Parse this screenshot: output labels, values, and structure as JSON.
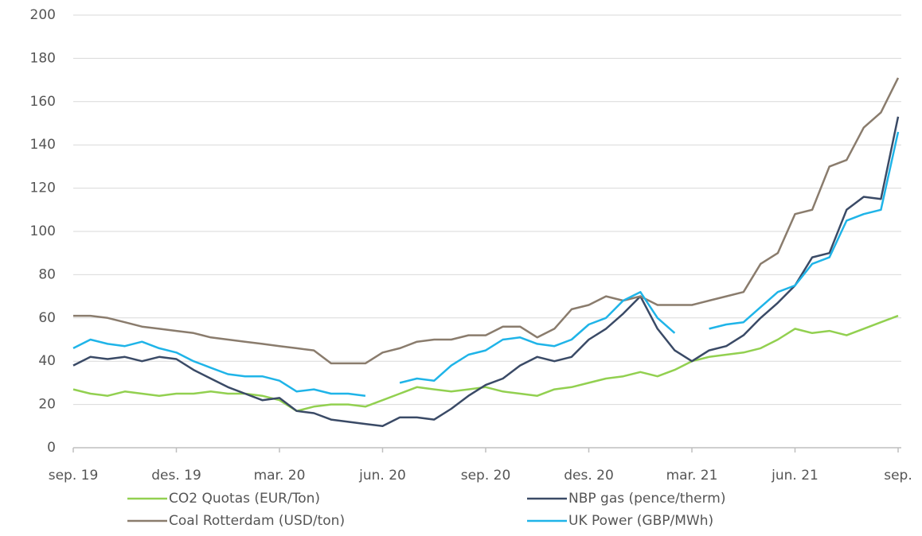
{
  "chart_data": {
    "type": "line",
    "x": [
      0,
      0.5,
      1,
      1.5,
      2,
      2.5,
      3,
      3.5,
      4,
      4.5,
      5,
      5.5,
      6,
      6.5,
      7,
      7.5,
      8,
      8.5,
      9,
      9.5,
      10,
      10.5,
      11,
      11.5,
      12,
      12.5,
      13,
      13.5,
      14,
      14.5,
      15,
      15.5,
      16,
      16.5,
      17,
      17.5,
      18,
      18.5,
      19,
      19.5,
      20,
      20.5,
      21,
      21.5,
      22,
      22.5,
      23,
      23.5,
      24
    ],
    "xlim": [
      0,
      24
    ],
    "xticks": [
      {
        "value": 0,
        "label": "sep. 19"
      },
      {
        "value": 3,
        "label": "des. 19"
      },
      {
        "value": 6,
        "label": "mar. 20"
      },
      {
        "value": 9,
        "label": "jun. 20"
      },
      {
        "value": 12,
        "label": "sep. 20"
      },
      {
        "value": 15,
        "label": "des. 20"
      },
      {
        "value": 18,
        "label": "mar. 21"
      },
      {
        "value": 21,
        "label": "jun. 21"
      },
      {
        "value": 24,
        "label": "sep."
      }
    ],
    "ylim": [
      0,
      200
    ],
    "yticks": [
      0,
      20,
      40,
      60,
      80,
      100,
      120,
      140,
      160,
      180,
      200
    ],
    "grid": true,
    "legend": "bottom",
    "series": [
      {
        "name": "CO2 Quotas (EUR/Ton)",
        "color": "#92d050",
        "values": [
          27,
          25,
          24,
          26,
          25,
          24,
          25,
          25,
          26,
          25,
          25,
          24,
          22,
          17,
          19,
          20,
          20,
          19,
          22,
          25,
          28,
          27,
          26,
          27,
          28,
          26,
          25,
          24,
          27,
          28,
          30,
          32,
          33,
          35,
          33,
          36,
          40,
          42,
          43,
          44,
          46,
          50,
          55,
          53,
          54,
          52,
          55,
          58,
          61
        ]
      },
      {
        "name": "NBP gas (pence/therm)",
        "color": "#3a4a66",
        "values": [
          38,
          42,
          41,
          42,
          40,
          42,
          41,
          36,
          32,
          28,
          25,
          22,
          23,
          17,
          16,
          13,
          12,
          11,
          10,
          14,
          14,
          13,
          18,
          24,
          29,
          32,
          38,
          42,
          40,
          42,
          50,
          55,
          62,
          70,
          55,
          45,
          40,
          45,
          47,
          52,
          60,
          67,
          75,
          88,
          90,
          110,
          116,
          115,
          153
        ]
      },
      {
        "name": "Coal Rotterdam (USD/ton)",
        "color": "#8a7c6d",
        "values": [
          61,
          61,
          60,
          58,
          56,
          55,
          54,
          53,
          51,
          50,
          49,
          48,
          47,
          46,
          45,
          39,
          39,
          39,
          44,
          46,
          49,
          50,
          50,
          52,
          52,
          56,
          56,
          51,
          55,
          64,
          66,
          70,
          68,
          70,
          66,
          66,
          66,
          68,
          70,
          72,
          85,
          90,
          108,
          110,
          130,
          133,
          148,
          155,
          171
        ]
      },
      {
        "name": "UK Power (GBP/MWh)",
        "color": "#1fb4e8",
        "values": [
          46,
          50,
          48,
          47,
          49,
          46,
          44,
          40,
          37,
          34,
          33,
          33,
          31,
          26,
          27,
          25,
          25,
          24,
          null,
          30,
          32,
          31,
          38,
          43,
          45,
          50,
          51,
          48,
          47,
          50,
          57,
          60,
          68,
          72,
          60,
          53,
          null,
          55,
          57,
          58,
          65,
          72,
          75,
          85,
          88,
          105,
          108,
          110,
          146
        ]
      }
    ]
  }
}
